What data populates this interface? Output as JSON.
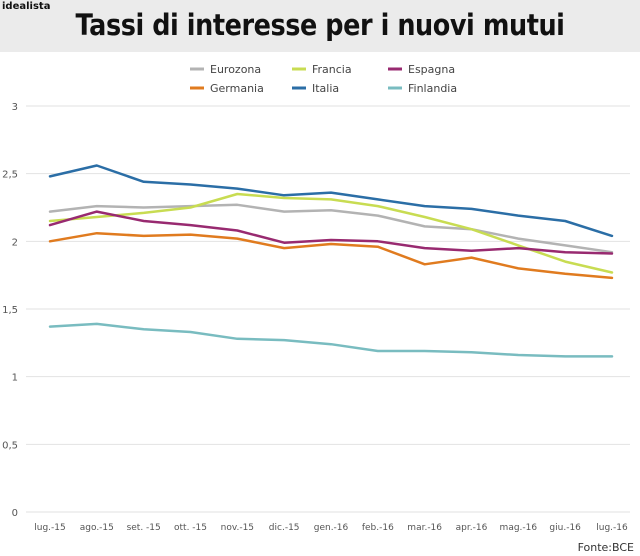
{
  "header": {
    "brand": "idealista",
    "title": "Tassi di interesse per i nuovi mutui"
  },
  "source": "Fonte:BCE",
  "chart_data": {
    "type": "line",
    "categories": [
      "lug.-15",
      "ago.-15",
      "set. -15",
      "ott. -15",
      "nov.-15",
      "dic.-15",
      "gen.-16",
      "feb.-16",
      "mar.-16",
      "apr.-16",
      "mag.-16",
      "giu.-16",
      "lug.-16"
    ],
    "ylim": [
      0,
      3
    ],
    "yticks": [
      0,
      0.5,
      1,
      1.5,
      2,
      2.5,
      3
    ],
    "ytick_labels": [
      "0",
      "0,5",
      "1",
      "1,5",
      "2",
      "2,5",
      "3"
    ],
    "grid": true,
    "legend_position": "top-center",
    "series": [
      {
        "name": "Eurozona",
        "color": "#b3b3b3",
        "values": [
          2.22,
          2.26,
          2.25,
          2.26,
          2.27,
          2.22,
          2.23,
          2.19,
          2.11,
          2.09,
          2.02,
          1.97,
          1.92
        ]
      },
      {
        "name": "Francia",
        "color": "#c8dc52",
        "values": [
          2.15,
          2.18,
          2.21,
          2.25,
          2.35,
          2.32,
          2.31,
          2.26,
          2.18,
          2.09,
          1.97,
          1.85,
          1.77
        ]
      },
      {
        "name": "Espagna",
        "color": "#982a70",
        "values": [
          2.12,
          2.22,
          2.15,
          2.12,
          2.08,
          1.99,
          2.01,
          2.0,
          1.95,
          1.93,
          1.95,
          1.92,
          1.91
        ]
      },
      {
        "name": "Germania",
        "color": "#e07b1f",
        "values": [
          2.0,
          2.06,
          2.04,
          2.05,
          2.02,
          1.95,
          1.98,
          1.96,
          1.83,
          1.88,
          1.8,
          1.76,
          1.73
        ]
      },
      {
        "name": "Italia",
        "color": "#2b6ea6",
        "values": [
          2.48,
          2.56,
          2.44,
          2.42,
          2.39,
          2.34,
          2.36,
          2.31,
          2.26,
          2.24,
          2.19,
          2.15,
          2.04
        ]
      },
      {
        "name": "Finlandia",
        "color": "#79bcc0",
        "values": [
          1.37,
          1.39,
          1.35,
          1.33,
          1.28,
          1.27,
          1.24,
          1.19,
          1.19,
          1.18,
          1.16,
          1.15,
          1.15
        ]
      }
    ]
  }
}
